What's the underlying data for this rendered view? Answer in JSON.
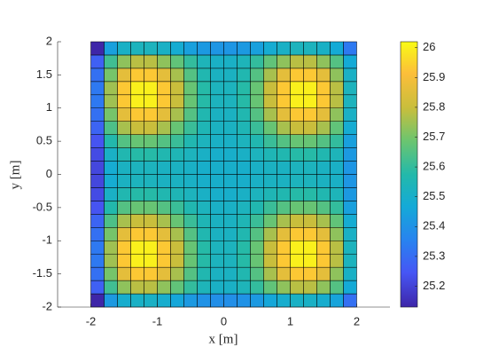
{
  "chart_data": {
    "type": "heatmap",
    "colormap": "parula",
    "x_label": "x [m]",
    "y_label": "y [m]",
    "x": [
      -2,
      -1.8,
      -1.6,
      -1.4,
      -1.2,
      -1,
      -0.8,
      -0.6,
      -0.4,
      -0.2,
      0,
      0.2,
      0.4,
      0.6,
      0.8,
      1,
      1.2,
      1.4,
      1.6,
      1.8,
      2
    ],
    "y": [
      -2,
      -1.8,
      -1.6,
      -1.4,
      -1.2,
      -1,
      -0.8,
      -0.6,
      -0.4,
      -0.2,
      0,
      0.2,
      0.4,
      0.6,
      0.8,
      1,
      1.2,
      1.4,
      1.6,
      1.8,
      2
    ],
    "z": [
      [
        25.13,
        25.42,
        25.49,
        25.51,
        25.51,
        25.49,
        25.46,
        25.42,
        25.4,
        25.39,
        25.39,
        25.4,
        25.42,
        25.46,
        25.49,
        25.51,
        25.51,
        25.49,
        25.45,
        25.31
      ],
      [
        25.27,
        25.62,
        25.73,
        25.78,
        25.78,
        25.73,
        25.67,
        25.6,
        25.54,
        25.51,
        25.51,
        25.54,
        25.6,
        25.67,
        25.73,
        25.78,
        25.78,
        25.73,
        25.65,
        25.47
      ],
      [
        25.31,
        25.7,
        25.86,
        25.93,
        25.93,
        25.86,
        25.76,
        25.65,
        25.56,
        25.52,
        25.52,
        25.56,
        25.65,
        25.76,
        25.86,
        25.93,
        25.93,
        25.86,
        25.73,
        25.51
      ],
      [
        25.33,
        25.75,
        25.93,
        26.0,
        26.0,
        25.93,
        25.8,
        25.68,
        25.58,
        25.53,
        25.53,
        25.58,
        25.68,
        25.8,
        25.93,
        26.0,
        26.0,
        25.93,
        25.78,
        25.53
      ],
      [
        25.33,
        25.75,
        25.93,
        26.0,
        26.0,
        25.93,
        25.8,
        25.68,
        25.58,
        25.53,
        25.53,
        25.58,
        25.68,
        25.8,
        25.93,
        26.0,
        26.0,
        25.93,
        25.78,
        25.53
      ],
      [
        25.31,
        25.7,
        25.86,
        25.93,
        25.93,
        25.86,
        25.76,
        25.65,
        25.56,
        25.52,
        25.52,
        25.56,
        25.65,
        25.76,
        25.86,
        25.93,
        25.93,
        25.86,
        25.73,
        25.51
      ],
      [
        25.28,
        25.64,
        25.76,
        25.8,
        25.8,
        25.76,
        25.68,
        25.61,
        25.55,
        25.52,
        25.52,
        25.55,
        25.61,
        25.68,
        25.76,
        25.8,
        25.8,
        25.76,
        25.67,
        25.48
      ],
      [
        25.24,
        25.57,
        25.65,
        25.68,
        25.68,
        25.65,
        25.61,
        25.56,
        25.53,
        25.51,
        25.51,
        25.53,
        25.56,
        25.61,
        25.65,
        25.68,
        25.68,
        25.65,
        25.6,
        25.44
      ],
      [
        25.22,
        25.51,
        25.56,
        25.58,
        25.58,
        25.56,
        25.55,
        25.53,
        25.51,
        25.5,
        25.5,
        25.51,
        25.53,
        25.55,
        25.56,
        25.58,
        25.58,
        25.56,
        25.54,
        25.42
      ],
      [
        25.21,
        25.48,
        25.52,
        25.53,
        25.53,
        25.52,
        25.52,
        25.51,
        25.5,
        25.5,
        25.5,
        25.5,
        25.51,
        25.52,
        25.52,
        25.53,
        25.53,
        25.52,
        25.51,
        25.41
      ],
      [
        25.21,
        25.48,
        25.52,
        25.53,
        25.53,
        25.52,
        25.52,
        25.51,
        25.5,
        25.5,
        25.5,
        25.5,
        25.51,
        25.52,
        25.52,
        25.53,
        25.53,
        25.52,
        25.51,
        25.41
      ],
      [
        25.22,
        25.51,
        25.56,
        25.58,
        25.58,
        25.56,
        25.55,
        25.53,
        25.51,
        25.5,
        25.5,
        25.51,
        25.53,
        25.55,
        25.56,
        25.58,
        25.58,
        25.56,
        25.54,
        25.42
      ],
      [
        25.24,
        25.57,
        25.65,
        25.68,
        25.68,
        25.65,
        25.61,
        25.56,
        25.53,
        25.51,
        25.51,
        25.53,
        25.56,
        25.61,
        25.65,
        25.68,
        25.68,
        25.65,
        25.6,
        25.44
      ],
      [
        25.28,
        25.64,
        25.76,
        25.8,
        25.8,
        25.76,
        25.68,
        25.61,
        25.55,
        25.52,
        25.52,
        25.55,
        25.61,
        25.68,
        25.76,
        25.8,
        25.8,
        25.76,
        25.67,
        25.48
      ],
      [
        25.31,
        25.7,
        25.86,
        25.93,
        25.93,
        25.86,
        25.76,
        25.65,
        25.56,
        25.52,
        25.52,
        25.56,
        25.65,
        25.76,
        25.86,
        25.93,
        25.93,
        25.86,
        25.73,
        25.51
      ],
      [
        25.33,
        25.75,
        25.93,
        26.0,
        26.0,
        25.93,
        25.8,
        25.68,
        25.58,
        25.53,
        25.53,
        25.58,
        25.68,
        25.8,
        25.93,
        26.0,
        26.0,
        25.93,
        25.78,
        25.53
      ],
      [
        25.33,
        25.75,
        25.93,
        26.0,
        26.0,
        25.93,
        25.8,
        25.68,
        25.58,
        25.53,
        25.53,
        25.58,
        25.68,
        25.8,
        25.93,
        26.0,
        26.0,
        25.93,
        25.78,
        25.53
      ],
      [
        25.31,
        25.7,
        25.86,
        25.93,
        25.93,
        25.86,
        25.76,
        25.65,
        25.56,
        25.52,
        25.52,
        25.56,
        25.65,
        25.76,
        25.86,
        25.93,
        25.93,
        25.86,
        25.73,
        25.51
      ],
      [
        25.27,
        25.62,
        25.73,
        25.78,
        25.78,
        25.73,
        25.67,
        25.6,
        25.54,
        25.51,
        25.51,
        25.54,
        25.6,
        25.67,
        25.73,
        25.78,
        25.78,
        25.73,
        25.65,
        25.47
      ],
      [
        25.13,
        25.44,
        25.51,
        25.53,
        25.53,
        25.51,
        25.48,
        25.44,
        25.42,
        25.41,
        25.41,
        25.42,
        25.44,
        25.48,
        25.51,
        25.53,
        25.53,
        25.51,
        25.47,
        25.33
      ]
    ],
    "xlim": [
      -2.5,
      2.5
    ],
    "ylim": [
      -2,
      2
    ],
    "xticks": [
      -2,
      -1,
      0,
      1,
      2
    ],
    "yticks": [
      -2,
      -1.5,
      -1,
      -0.5,
      0,
      0.5,
      1,
      1.5,
      2
    ],
    "clim": [
      25.13,
      26.02
    ],
    "cticks": [
      25.2,
      25.3,
      25.4,
      25.5,
      25.6,
      25.7,
      25.8,
      25.9,
      26
    ]
  }
}
